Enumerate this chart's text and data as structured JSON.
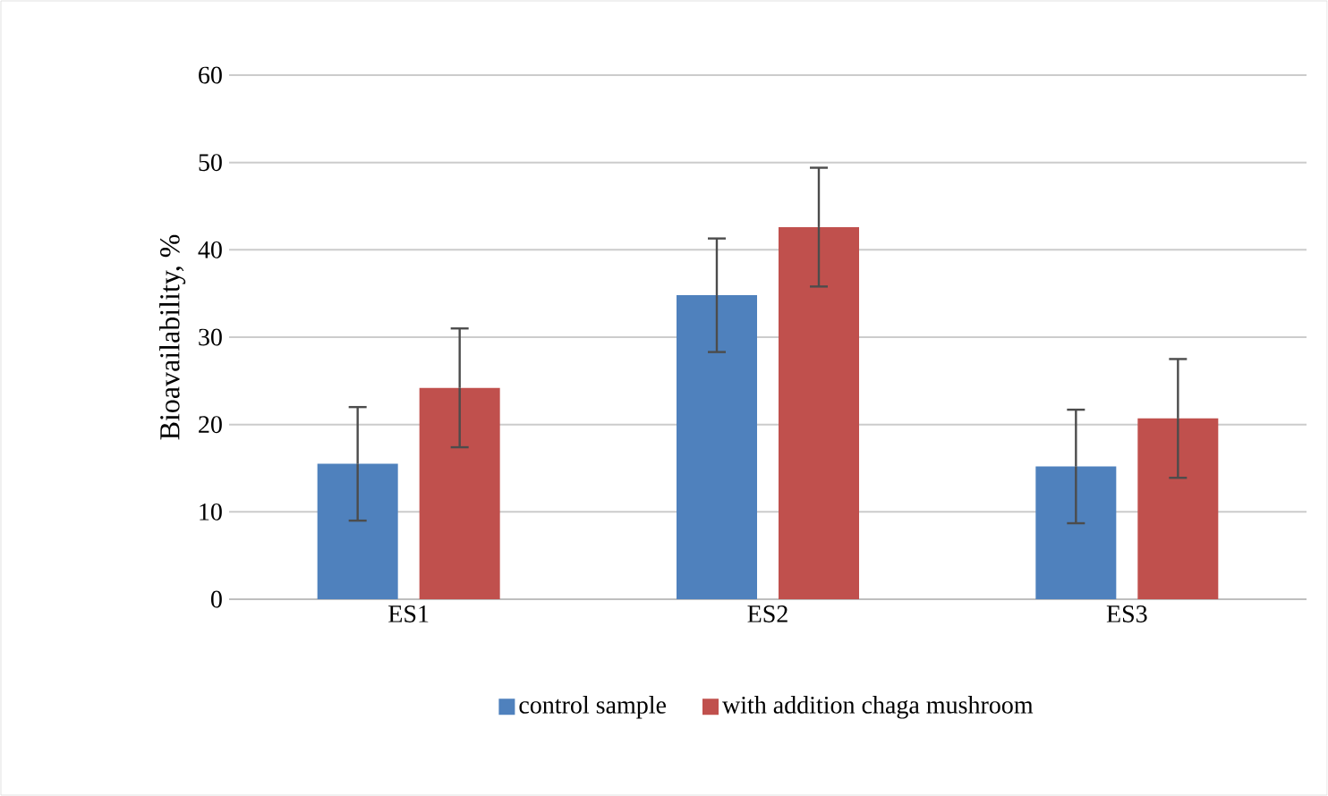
{
  "chart_data": {
    "type": "bar",
    "ylabel": "Bioavailability, %",
    "categories": [
      "ES1",
      "ES2",
      "ES3"
    ],
    "series": [
      {
        "name": "control sample",
        "color": "#4f81bd",
        "values": [
          15.5,
          34.8,
          15.2
        ],
        "errors": [
          6.5,
          6.5,
          6.5
        ]
      },
      {
        "name": "with addition chaga mushroom",
        "color": "#c0504d",
        "values": [
          24.2,
          42.6,
          20.7
        ],
        "errors": [
          6.8,
          6.8,
          6.8
        ]
      }
    ],
    "ylim": [
      0,
      60
    ],
    "yticks": [
      0,
      10,
      20,
      30,
      40,
      50,
      60
    ],
    "grid": "y",
    "legend": "bottom"
  }
}
